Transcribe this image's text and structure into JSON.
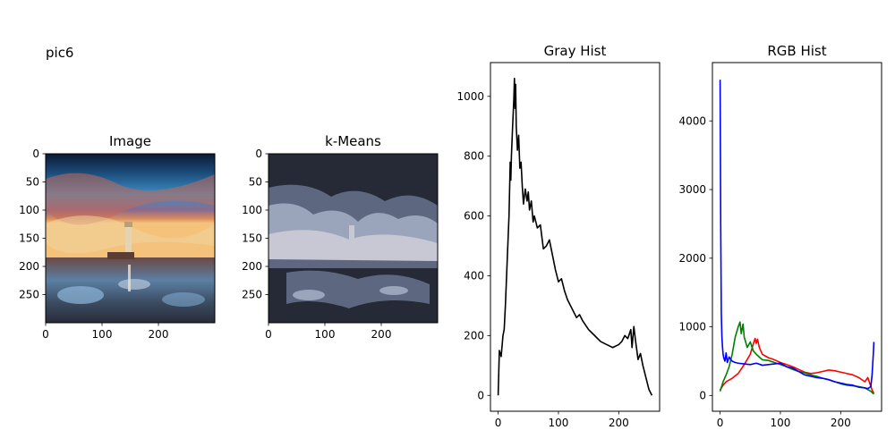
{
  "figure_label": "pic6",
  "panels": {
    "image": {
      "title": "Image"
    },
    "kmeans": {
      "title": "k-Means"
    },
    "gray": {
      "title": "Gray Hist"
    },
    "rgb": {
      "title": "RGB Hist"
    }
  },
  "colors": {
    "gray_line": "#000000",
    "red": "#ff0000",
    "green": "#008000",
    "blue": "#0000ff",
    "kmeans_clusters": [
      "#252a36",
      "#5d6880",
      "#9aa5bb",
      "#c7c8d3"
    ]
  },
  "chart_data": [
    {
      "type": "image",
      "title": "Image",
      "xlim": [
        0,
        300
      ],
      "ylim": [
        300,
        0
      ],
      "xticks": [
        0,
        100,
        200
      ],
      "yticks": [
        0,
        50,
        100,
        150,
        200,
        250
      ]
    },
    {
      "type": "image",
      "title": "k-Means",
      "xlim": [
        0,
        300
      ],
      "ylim": [
        300,
        0
      ],
      "xticks": [
        0,
        100,
        200
      ],
      "yticks": [
        0,
        50,
        100,
        150,
        200,
        250
      ]
    },
    {
      "type": "line",
      "title": "Gray Hist",
      "xlim": [
        -12.75,
        267.75
      ],
      "ylim": [
        -53,
        1113
      ],
      "xticks": [
        0,
        100,
        200
      ],
      "yticks": [
        0,
        200,
        400,
        600,
        800,
        1000
      ],
      "series": [
        {
          "color": "#000000",
          "x": [
            0,
            2,
            5,
            8,
            10,
            12,
            15,
            18,
            20,
            21,
            22,
            24,
            26,
            27,
            28,
            29,
            30,
            32,
            34,
            36,
            38,
            40,
            42,
            45,
            48,
            50,
            52,
            55,
            58,
            60,
            65,
            70,
            75,
            80,
            85,
            90,
            95,
            100,
            105,
            110,
            115,
            120,
            125,
            130,
            135,
            140,
            150,
            160,
            170,
            180,
            190,
            200,
            205,
            210,
            215,
            220,
            222,
            225,
            228,
            232,
            236,
            240,
            245,
            250,
            255
          ],
          "y": [
            0,
            150,
            130,
            200,
            220,
            300,
            450,
            600,
            780,
            720,
            800,
            900,
            990,
            1060,
            960,
            1040,
            900,
            820,
            870,
            760,
            780,
            700,
            640,
            690,
            650,
            680,
            620,
            650,
            580,
            600,
            560,
            570,
            490,
            500,
            520,
            470,
            420,
            380,
            390,
            350,
            320,
            300,
            280,
            260,
            270,
            250,
            220,
            200,
            180,
            170,
            160,
            170,
            180,
            200,
            190,
            220,
            160,
            230,
            180,
            120,
            140,
            100,
            60,
            20,
            0
          ]
        }
      ]
    },
    {
      "type": "line",
      "title": "RGB Hist",
      "xlim": [
        -12.75,
        267.75
      ],
      "ylim": [
        -230,
        4850
      ],
      "xticks": [
        0,
        100,
        200
      ],
      "yticks": [
        0,
        1000,
        2000,
        3000,
        4000
      ],
      "series": [
        {
          "color": "#ff0000",
          "x": [
            0,
            5,
            10,
            20,
            30,
            40,
            50,
            55,
            58,
            60,
            62,
            65,
            70,
            80,
            90,
            100,
            110,
            120,
            130,
            140,
            150,
            160,
            170,
            180,
            190,
            200,
            210,
            220,
            230,
            240,
            245,
            248,
            252,
            255
          ],
          "y": [
            80,
            150,
            200,
            250,
            320,
            450,
            600,
            750,
            830,
            760,
            820,
            700,
            600,
            550,
            520,
            480,
            450,
            420,
            380,
            340,
            320,
            330,
            350,
            370,
            360,
            340,
            320,
            300,
            260,
            200,
            260,
            180,
            80,
            30
          ]
        },
        {
          "color": "#008000",
          "x": [
            0,
            5,
            10,
            15,
            20,
            25,
            30,
            33,
            35,
            38,
            40,
            45,
            50,
            55,
            60,
            65,
            70,
            80,
            90,
            100,
            110,
            120,
            130,
            140,
            150,
            160,
            170,
            180,
            190,
            200,
            210,
            220,
            230,
            240,
            250,
            255
          ],
          "y": [
            60,
            200,
            300,
            420,
            600,
            850,
            1000,
            1070,
            900,
            1040,
            850,
            700,
            780,
            650,
            600,
            560,
            520,
            510,
            480,
            450,
            420,
            380,
            350,
            330,
            300,
            280,
            250,
            230,
            200,
            170,
            150,
            140,
            130,
            110,
            60,
            20
          ]
        },
        {
          "color": "#0000ff",
          "x": [
            0,
            1,
            2,
            3,
            4,
            5,
            6,
            8,
            10,
            12,
            15,
            18,
            20,
            25,
            30,
            40,
            50,
            60,
            70,
            80,
            90,
            100,
            110,
            120,
            130,
            140,
            150,
            160,
            170,
            180,
            190,
            200,
            210,
            220,
            230,
            240,
            245,
            250,
            252,
            254,
            255
          ],
          "y": [
            4600,
            2500,
            1200,
            850,
            700,
            600,
            550,
            500,
            620,
            480,
            560,
            520,
            500,
            480,
            470,
            460,
            450,
            470,
            440,
            450,
            460,
            470,
            420,
            400,
            350,
            300,
            280,
            260,
            250,
            230,
            200,
            180,
            160,
            150,
            120,
            110,
            100,
            130,
            300,
            600,
            780
          ]
        }
      ]
    }
  ]
}
